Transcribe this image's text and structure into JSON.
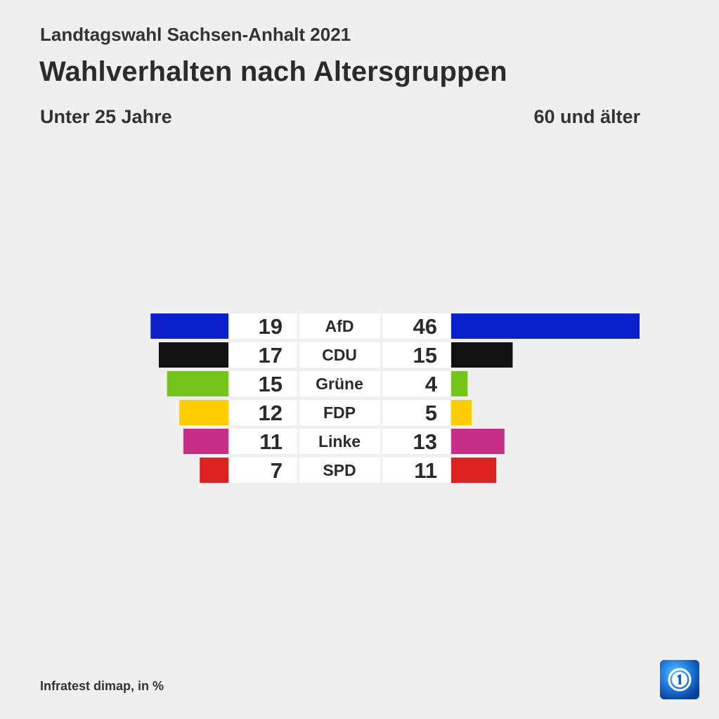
{
  "header": {
    "supertitle": "Landtagswahl Sachsen-Anhalt 2021",
    "title": "Wahlverhalten nach Altersgruppen",
    "group_left": "Unter 25 Jahre",
    "group_right": "60 und älter"
  },
  "footer": {
    "source": "Infratest dimap, in %",
    "logo_icon": "ard-das-erste-logo-icon"
  },
  "chart_data": {
    "type": "bar",
    "orientation": "horizontal-butterfly",
    "unit": "%",
    "categories": [
      "AfD",
      "CDU",
      "Grüne",
      "FDP",
      "Linke",
      "SPD"
    ],
    "colors": [
      "#0a1fcc",
      "#111111",
      "#74c41c",
      "#ffcc00",
      "#c72e85",
      "#dd2020"
    ],
    "series": [
      {
        "name": "Unter 25 Jahre",
        "values": [
          19,
          17,
          15,
          12,
          11,
          7
        ]
      },
      {
        "name": "60 und älter",
        "values": [
          46,
          15,
          4,
          5,
          13,
          11
        ]
      }
    ],
    "xlim": [
      0,
      46
    ],
    "grid": false,
    "legend": "none"
  }
}
